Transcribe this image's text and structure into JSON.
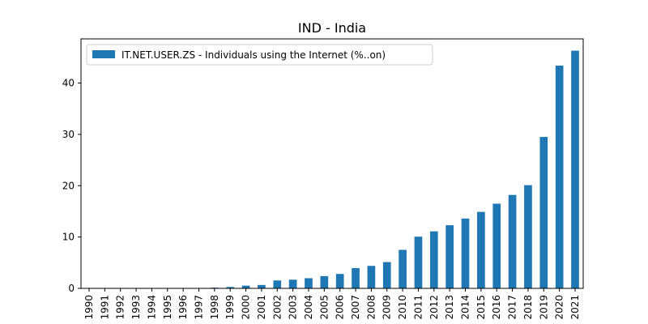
{
  "chart_data": {
    "type": "bar",
    "title": "IND - India",
    "xlabel": "",
    "ylabel": "",
    "categories": [
      "1990",
      "1991",
      "1992",
      "1993",
      "1994",
      "1995",
      "1996",
      "1997",
      "1998",
      "1999",
      "2000",
      "2001",
      "2002",
      "2003",
      "2004",
      "2005",
      "2006",
      "2007",
      "2008",
      "2009",
      "2010",
      "2011",
      "2012",
      "2013",
      "2014",
      "2015",
      "2016",
      "2017",
      "2018",
      "2019",
      "2020",
      "2021"
    ],
    "series": [
      {
        "name": "IT.NET.USER.ZS - Individuals using the Internet (%..on)",
        "color": "#1f77b4",
        "values": [
          0.0,
          0.0,
          0.0,
          0.0,
          0.0,
          0.03,
          0.05,
          0.07,
          0.14,
          0.27,
          0.53,
          0.66,
          1.54,
          1.69,
          1.98,
          2.39,
          2.81,
          3.95,
          4.38,
          5.12,
          7.5,
          10.07,
          11.1,
          12.3,
          13.6,
          14.9,
          16.5,
          18.2,
          20.1,
          29.5,
          43.4,
          46.3
        ]
      }
    ],
    "yticks": [
      0,
      10,
      20,
      30,
      40
    ],
    "ylim": [
      0,
      48.6
    ],
    "grid": false,
    "legend": "upper-left"
  }
}
